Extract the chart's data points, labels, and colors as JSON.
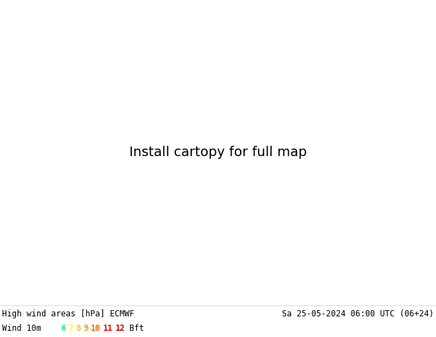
{
  "title_left": "High wind areas [hPa] ECMWF",
  "title_right": "Sa 25-05-2024 06:00 UTC (06+24)",
  "legend_label": "Wind 10m",
  "legend_values": [
    "6",
    "7",
    "8",
    "9",
    "10",
    "11",
    "12"
  ],
  "legend_suffix": "Bft",
  "legend_colors": [
    "#00ff78",
    "#ffff00",
    "#ffcc00",
    "#ff9900",
    "#ff6600",
    "#ff0000",
    "#cc0000"
  ],
  "bottom_bg": "#ffffff",
  "font_size_title": 8.5,
  "font_size_legend": 8.5,
  "extent": [
    25,
    145,
    5,
    75
  ],
  "ocean_color": "#b0d4e8",
  "land_color": "#ddd0a0",
  "lake_color": "#b0d4e8",
  "border_color": "#888888",
  "coastline_color": "#555555"
}
